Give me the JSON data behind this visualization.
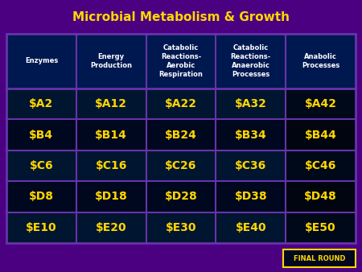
{
  "title": "Microbial Metabolism & Growth",
  "title_color": "#FFD700",
  "title_bg": "#4B0082",
  "header_bg": "#001850",
  "header_text_color": "#FFFFFF",
  "cell_bg_A": "#001530",
  "cell_bg_B": "#000820",
  "cell_text_color": "#FFD700",
  "outer_bg": "#4B0082",
  "grid_border_color": "#6633AA",
  "headers": [
    "Enzymes",
    "Energy\nProduction",
    "Catabolic\nReactions-\nAerobic\nRespiration",
    "Catabolic\nReactions-\nAnaerobic\nProcesses",
    "Anabolic\nProcesses"
  ],
  "rows": [
    [
      "$A2",
      "$A12",
      "$A22",
      "$A32",
      "$A42"
    ],
    [
      "$B4",
      "$B14",
      "$B24",
      "$B34",
      "$B44"
    ],
    [
      "$C6",
      "$C16",
      "$C26",
      "$C36",
      "$C46"
    ],
    [
      "$D8",
      "$D18",
      "$D28",
      "$D38",
      "$D48"
    ],
    [
      "$E10",
      "$E20",
      "$E30",
      "$E40",
      "$E50"
    ]
  ],
  "final_round_text": "FINAL ROUND",
  "final_round_bg": "#000820",
  "final_round_border": "#FFD700",
  "final_round_text_color": "#FFD700",
  "figsize": [
    4.5,
    3.38
  ],
  "dpi": 100
}
